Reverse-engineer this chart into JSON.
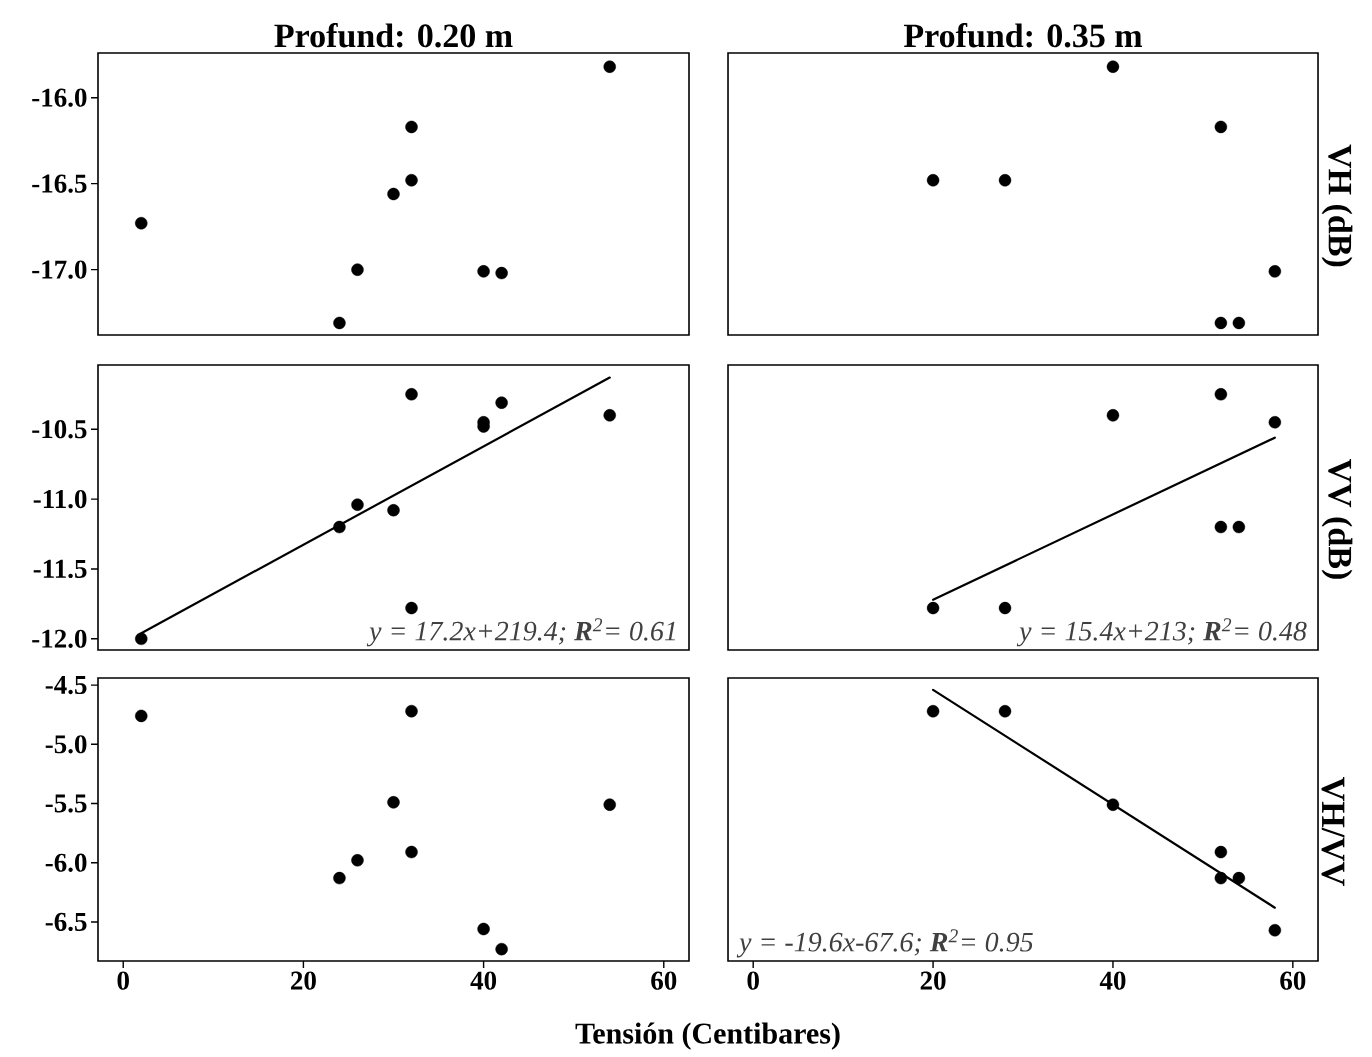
{
  "chart_data": [
    {
      "type": "scatter",
      "title": "Profund: 0.20 m",
      "tick_labels": "y",
      "xlim": [
        -2.8,
        62.8
      ],
      "xticks": [
        0,
        20,
        40,
        60
      ],
      "ylim": [
        -17.38,
        -15.74
      ],
      "yticks": [
        {
          "value": -16,
          "label": "-16.0"
        },
        {
          "value": -16.5,
          "label": "-16.5"
        },
        {
          "value": -17,
          "label": "-17.0"
        }
      ],
      "series": [
        {
          "color": "#000000",
          "marker": "circle",
          "x": [
            2,
            24,
            26,
            30,
            32,
            32,
            40,
            42,
            54
          ],
          "values": [
            -16.73,
            -17.31,
            -17.0,
            -16.56,
            -16.17,
            -16.48,
            -17.01,
            -17.02,
            -15.82
          ]
        }
      ]
    },
    {
      "type": "scatter",
      "title": "Profund: 0.35 m",
      "ylabel": "VH (dB)",
      "tick_labels": false,
      "xlim": [
        -2.8,
        62.8
      ],
      "xticks": [
        0,
        20,
        40,
        60
      ],
      "ylim": [
        -17.38,
        -15.74
      ],
      "series": [
        {
          "color": "#000000",
          "marker": "circle",
          "x": [
            20,
            28,
            40,
            52,
            52,
            54,
            58
          ],
          "values": [
            -16.48,
            -16.48,
            -15.82,
            -16.17,
            -17.31,
            -17.31,
            -17.01
          ]
        }
      ]
    },
    {
      "type": "scatter",
      "tick_labels": "y",
      "xlim": [
        -2.8,
        62.8
      ],
      "xticks": [
        0,
        20,
        40,
        60
      ],
      "ylim": [
        -12.08,
        -10.04
      ],
      "yticks": [
        {
          "value": -10.5,
          "label": "-10.5"
        },
        {
          "value": -11,
          "label": "-11.0"
        },
        {
          "value": -11.5,
          "label": "-11.5"
        },
        {
          "value": -12,
          "label": "-12.0"
        }
      ],
      "annotations": [
        "y = 17.2x+219.4; **R**$^{2}$= 0.61"
      ],
      "series": [
        {
          "color": "#000000",
          "marker": "circle",
          "x": [
            2,
            24,
            26,
            30,
            32,
            32,
            40,
            40,
            42,
            54
          ],
          "values": [
            -12.0,
            -11.2,
            -11.04,
            -11.08,
            -10.25,
            -11.78,
            -10.45,
            -10.48,
            -10.31,
            -10.4
          ]
        },
        {
          "type": "line",
          "color": "#000000",
          "x": [
            2,
            54
          ],
          "values": [
            -11.96,
            -10.13
          ]
        }
      ]
    },
    {
      "type": "scatter",
      "ylabel": "VV (dB)",
      "tick_labels": false,
      "xlim": [
        -2.8,
        62.8
      ],
      "xticks": [
        0,
        20,
        40,
        60
      ],
      "ylim": [
        -12.08,
        -10.04
      ],
      "annotations": [
        "y = 15.4x+213; **R**$^{2}$= 0.48"
      ],
      "series": [
        {
          "color": "#000000",
          "marker": "circle",
          "x": [
            20,
            28,
            40,
            52,
            52,
            54,
            58
          ],
          "values": [
            -11.78,
            -11.78,
            -10.4,
            -10.25,
            -11.2,
            -11.2,
            -10.45
          ]
        },
        {
          "type": "line",
          "color": "#000000",
          "x": [
            20,
            58
          ],
          "values": [
            -11.72,
            -10.56
          ]
        }
      ]
    },
    {
      "type": "scatter",
      "xlabel": "Tensión (Centibares)",
      "xlim": [
        -2.8,
        62.8
      ],
      "xticks": [
        0,
        20,
        40,
        60
      ],
      "ylim": [
        -6.83,
        -4.44
      ],
      "yticks": [
        {
          "value": -4.5,
          "label": "-4.5"
        },
        {
          "value": -5,
          "label": "-5.0"
        },
        {
          "value": -5.5,
          "label": "-5.5"
        },
        {
          "value": -6,
          "label": "-6.0"
        },
        {
          "value": -6.5,
          "label": "-6.5"
        }
      ],
      "series": [
        {
          "color": "#000000",
          "marker": "circle",
          "x": [
            2,
            24,
            26,
            30,
            32,
            32,
            40,
            42,
            54
          ],
          "values": [
            -4.76,
            -6.13,
            -5.98,
            -5.49,
            -4.72,
            -5.91,
            -6.56,
            -6.73,
            -5.51
          ]
        }
      ]
    },
    {
      "type": "scatter",
      "ylabel": "VH/VV",
      "tick_labels": "x",
      "xlim": [
        -2.8,
        62.8
      ],
      "xticks": [
        0,
        20,
        40,
        60
      ],
      "ylim": [
        -6.83,
        -4.44
      ],
      "annotations": [
        "y = -19.6x-67.6; **R**$^{2}$= 0.95"
      ],
      "series": [
        {
          "color": "#000000",
          "marker": "circle",
          "x": [
            20,
            28,
            40,
            52,
            52,
            54,
            58
          ],
          "values": [
            -4.72,
            -4.72,
            -5.51,
            -5.91,
            -6.13,
            -6.13,
            -6.57
          ]
        },
        {
          "type": "line",
          "color": "#000000",
          "x": [
            20,
            58
          ],
          "values": [
            -4.54,
            -6.38
          ]
        }
      ]
    }
  ]
}
